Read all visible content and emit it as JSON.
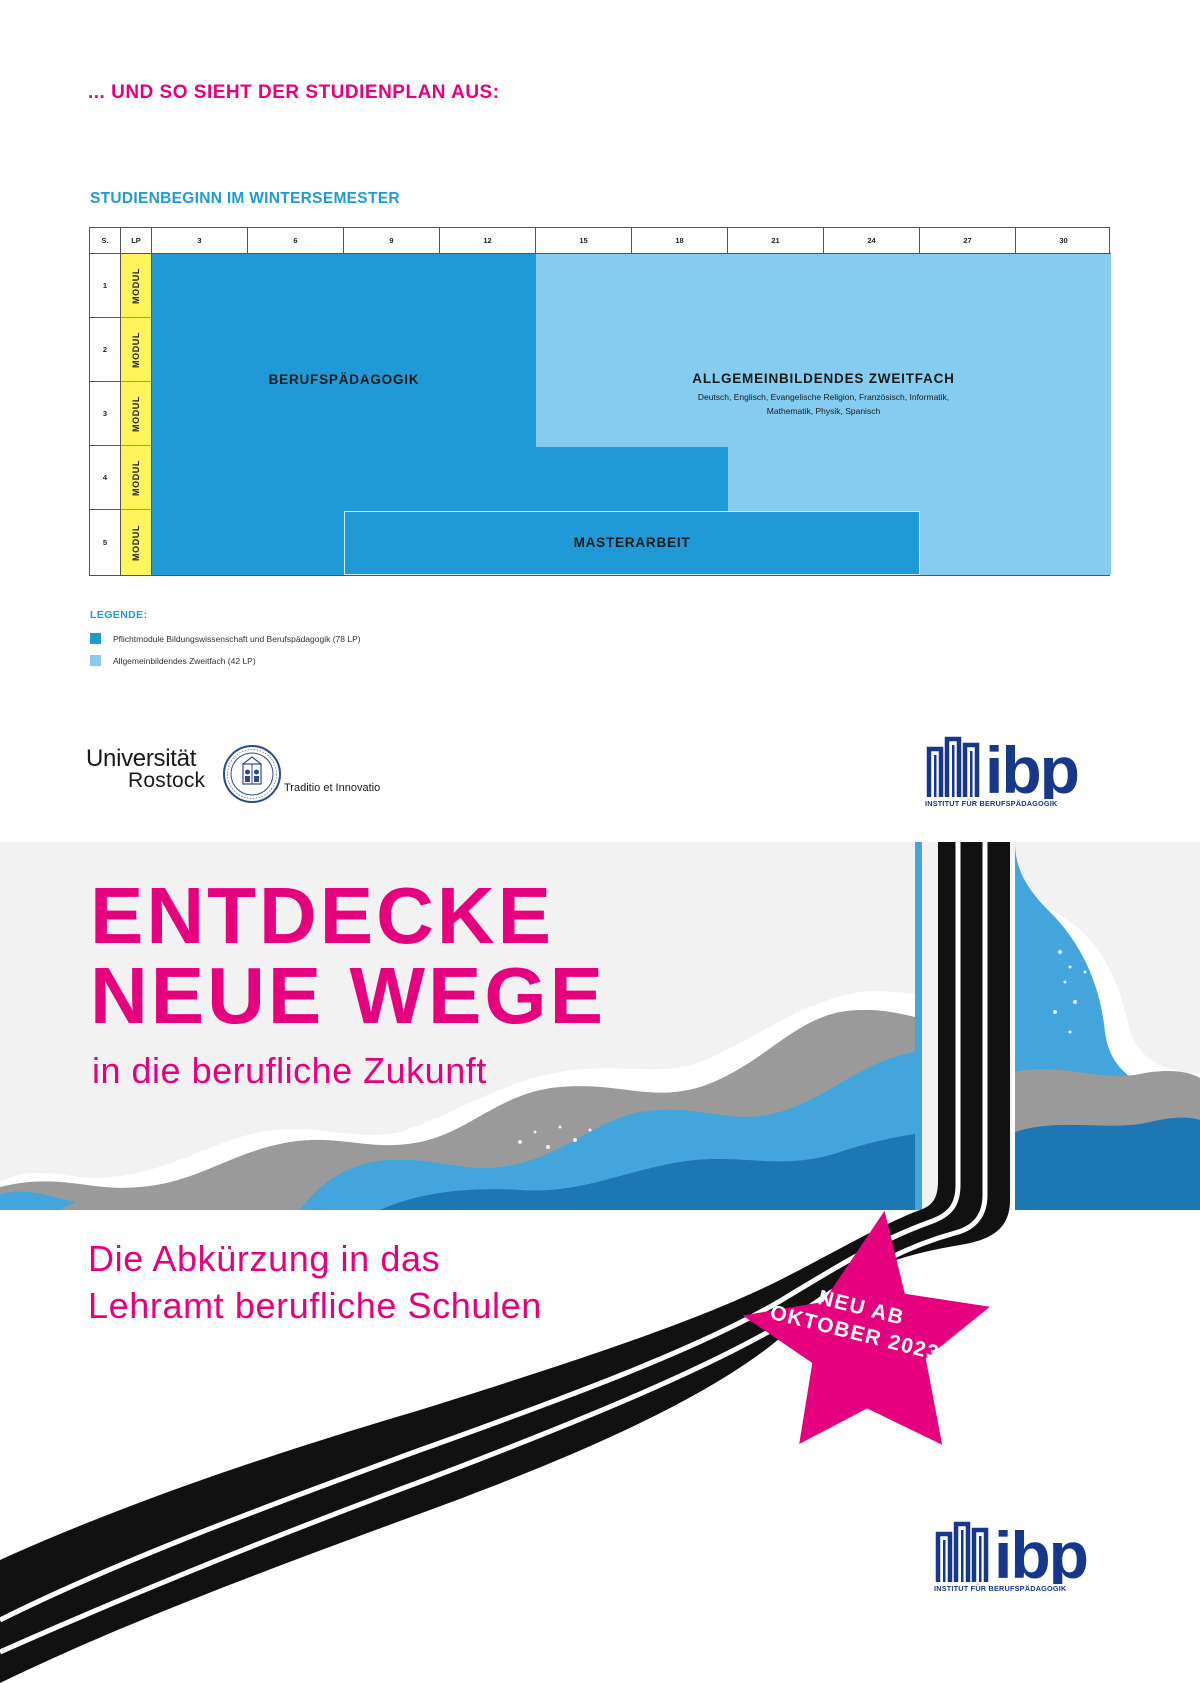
{
  "heading": "... UND SO SIEHT DER STUDIENPLAN AUS:",
  "plan": {
    "title": "STUDIENBEGINN IM WINTERSEMESTER",
    "col_s": "S.",
    "col_lp": "LP",
    "lp_ticks": [
      "3",
      "6",
      "9",
      "12",
      "15",
      "18",
      "21",
      "24",
      "27",
      "30"
    ],
    "semesters": [
      "1",
      "2",
      "3",
      "4",
      "5"
    ],
    "modul_label": "MODUL",
    "blocks": {
      "berufspaedagogik": "BERUFSPÄDAGOGIK",
      "zweitfach": "ALLGEMEINBILDENDES ZWEITFACH",
      "zweitfach_subjects_1": "Deutsch, Englisch, Evangelische Religion, Französisch, Informatik,",
      "zweitfach_subjects_2": "Mathematik, Physik, Spanisch",
      "masterarbeit": "MASTERARBEIT"
    },
    "legend": {
      "title": "LEGENDE:",
      "items": [
        {
          "label": "Pflichtmodule Bildungswissenschaft und Berufspädagogik (78 LP)",
          "color": "#1f9ad6"
        },
        {
          "label": "Allgemeinbildendes Zweitfach (42 LP)",
          "color": "#84cdf1"
        }
      ]
    }
  },
  "logos": {
    "uni_line1": "Universität",
    "uni_line2": "Rostock",
    "uni_motto": "Traditio et Innovatio",
    "ibp_text": "ibp",
    "ibp_caption": "INSTITUT FÜR BERUFSPÄDAGOGIK"
  },
  "hero": {
    "title_line1": "ENTDECKE",
    "title_line2": "NEUE WEGE",
    "tagline": "in die berufliche Zukunft",
    "subtitle_line1": "Die Abkürzung in das",
    "subtitle_line2": "Lehramt berufliche Schulen",
    "badge_line1": "NEU AB",
    "badge_line2": "OKTOBER 2023"
  },
  "colors": {
    "magenta": "#e6007e",
    "blue_dark": "#1f9ad6",
    "blue_light": "#84cdf1",
    "navy": "#16378a",
    "module_yellow": "#fff55c"
  }
}
